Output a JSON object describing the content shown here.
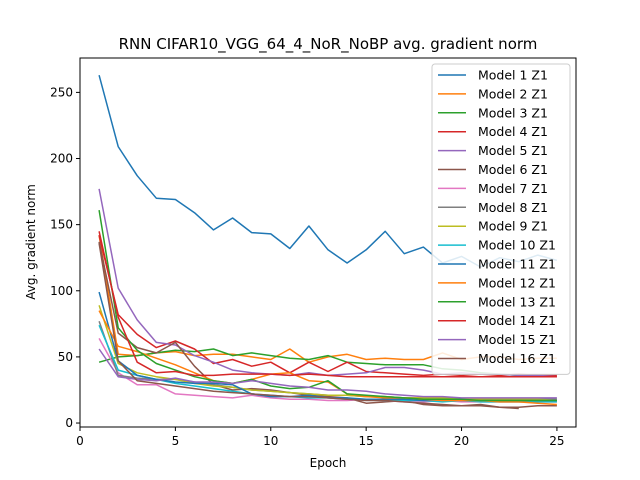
{
  "chart_data": {
    "type": "line",
    "title": "RNN CIFAR10_VGG_64_4_NoR_NoBP avg. gradient norm",
    "xlabel": "Epoch",
    "ylabel": "Avg. gradient norm",
    "xlim": [
      0,
      26
    ],
    "ylim": [
      -3,
      276
    ],
    "xticks": [
      0,
      5,
      10,
      15,
      20,
      25
    ],
    "yticks": [
      0,
      50,
      100,
      150,
      200,
      250
    ],
    "grid": false,
    "legend_position": "top-right",
    "series": [
      {
        "name": "Model 1 Z1",
        "color": "#1f77b4",
        "x": [
          1,
          2,
          3,
          4,
          5,
          6,
          7,
          8,
          9,
          10,
          11,
          12,
          13,
          14,
          15,
          16,
          17,
          18,
          19,
          20,
          21,
          22,
          23,
          24,
          25
        ],
        "y": [
          263,
          209,
          187,
          170,
          169,
          159,
          146,
          155,
          144,
          143,
          132,
          149,
          131,
          121,
          131,
          145,
          128,
          133,
          121,
          126,
          118,
          125,
          122,
          127,
          123
        ]
      },
      {
        "name": "Model 2 Z1",
        "color": "#ff7f0e",
        "x": [
          1,
          2,
          3,
          4,
          5,
          6,
          7,
          8,
          9,
          10,
          11,
          12,
          13,
          14,
          15,
          16,
          17,
          18,
          19,
          20,
          21,
          22,
          23,
          24,
          25
        ],
        "y": [
          142,
          52,
          51,
          53,
          54,
          51,
          52,
          52,
          50,
          48,
          56,
          46,
          50,
          52,
          48,
          49,
          48,
          48,
          53,
          48,
          50,
          50,
          48,
          49,
          49
        ]
      },
      {
        "name": "Model 3 Z1",
        "color": "#2ca02c",
        "x": [
          1,
          2,
          3,
          4,
          5,
          6,
          7,
          8,
          9,
          10,
          11,
          12,
          13,
          14,
          15,
          16,
          17,
          18,
          19,
          20,
          21,
          22,
          23,
          24,
          25
        ],
        "y": [
          46,
          50,
          51,
          53,
          55,
          54,
          56,
          51,
          53,
          51,
          49,
          48,
          51,
          46,
          45,
          44,
          44,
          44,
          41,
          40,
          38,
          37,
          36,
          35,
          35
        ]
      },
      {
        "name": "Model 4 Z1",
        "color": "#d62728",
        "x": [
          1,
          2,
          3,
          4,
          5,
          6,
          7,
          8,
          9,
          10,
          11,
          12,
          13,
          14,
          15,
          16,
          17,
          18,
          19,
          20,
          21,
          22,
          23,
          24,
          25
        ],
        "y": [
          142,
          82,
          67,
          57,
          62,
          56,
          45,
          48,
          43,
          46,
          38,
          46,
          39,
          46,
          39,
          38,
          37,
          36,
          37,
          36,
          37,
          36,
          37,
          36,
          36
        ]
      },
      {
        "name": "Model 5 Z1",
        "color": "#9467bd",
        "x": [
          1,
          2,
          3,
          4,
          5,
          6,
          7,
          8,
          9,
          10,
          11,
          12,
          13,
          14,
          15,
          16,
          17,
          18,
          19,
          20,
          21,
          22,
          23,
          24,
          25
        ],
        "y": [
          177,
          102,
          78,
          61,
          59,
          51,
          46,
          40,
          38,
          37,
          36,
          38,
          36,
          37,
          38,
          42,
          42,
          40,
          37,
          38,
          37,
          37,
          36,
          36,
          35
        ]
      },
      {
        "name": "Model 6 Z1",
        "color": "#8c564b",
        "x": [
          1,
          2,
          3,
          4,
          5,
          6,
          7,
          8,
          9,
          10,
          11,
          12,
          13,
          14,
          15,
          16,
          17,
          18,
          19,
          20,
          21,
          22,
          23,
          24,
          25
        ],
        "y": [
          137,
          68,
          57,
          53,
          61,
          43,
          29,
          25,
          26,
          25,
          23,
          21,
          20,
          19,
          15,
          16,
          17,
          14,
          13,
          13,
          14,
          12,
          12,
          13,
          13
        ]
      },
      {
        "name": "Model 7 Z1",
        "color": "#e377c2",
        "x": [
          1,
          2,
          3,
          4,
          5,
          6,
          7,
          8,
          9,
          10,
          11,
          12,
          13,
          14,
          15,
          16,
          17,
          18,
          19,
          20,
          21,
          22,
          23,
          24,
          25
        ],
        "y": [
          64,
          38,
          29,
          29,
          22,
          21,
          20,
          19,
          21,
          19,
          18,
          18,
          17,
          17,
          18,
          17,
          16,
          16,
          17,
          16,
          16,
          16,
          16,
          16,
          16
        ]
      },
      {
        "name": "Model 8 Z1",
        "color": "#7f7f7f",
        "x": [
          1,
          2,
          3,
          4,
          5,
          6,
          7,
          8,
          9,
          10,
          11,
          12,
          13,
          14,
          15,
          16,
          17,
          18,
          19,
          20,
          21,
          22,
          23,
          24,
          25
        ],
        "y": [
          77,
          36,
          34,
          33,
          33,
          31,
          29,
          27,
          25,
          24,
          23,
          22,
          21,
          21,
          20,
          20,
          19,
          19,
          19,
          18,
          18,
          18,
          18,
          18,
          18
        ]
      },
      {
        "name": "Model 9 Z1",
        "color": "#bcbd22",
        "x": [
          1,
          2,
          3,
          4,
          5,
          6,
          7,
          8,
          9,
          10,
          11,
          12,
          13,
          14,
          15,
          16,
          17,
          18,
          19,
          20,
          21,
          22,
          23,
          24,
          25
        ],
        "y": [
          89,
          45,
          38,
          35,
          33,
          30,
          28,
          27,
          25,
          24,
          23,
          22,
          21,
          21,
          20,
          20,
          19,
          19,
          19,
          18,
          18,
          18,
          18,
          18,
          17
        ]
      },
      {
        "name": "Model 10 Z1",
        "color": "#17becf",
        "x": [
          1,
          2,
          3,
          4,
          5,
          6,
          7,
          8,
          9,
          10,
          11,
          12,
          13,
          14,
          15,
          16,
          17,
          18,
          19,
          20,
          21,
          22,
          23,
          24,
          25
        ],
        "y": [
          74,
          40,
          36,
          33,
          30,
          28,
          26,
          24,
          22,
          21,
          20,
          19,
          19,
          18,
          18,
          17,
          17,
          17,
          16,
          17,
          16,
          16,
          16,
          16,
          16
        ]
      },
      {
        "name": "Model 11 Z1",
        "color": "#1f77b4",
        "x": [
          1,
          2,
          3,
          4,
          5,
          6,
          7,
          8,
          9,
          10,
          11,
          12,
          13,
          14,
          15,
          16,
          17,
          18,
          19,
          20,
          21,
          22,
          23,
          24,
          25
        ],
        "y": [
          99,
          47,
          36,
          33,
          31,
          30,
          30,
          29,
          22,
          20,
          20,
          21,
          19,
          19,
          18,
          18,
          18,
          17,
          18,
          17,
          17,
          17,
          17,
          17,
          17
        ]
      },
      {
        "name": "Model 12 Z1",
        "color": "#ff7f0e",
        "x": [
          1,
          2,
          3,
          4,
          5,
          6,
          7,
          8,
          9,
          10,
          11,
          12,
          13,
          14,
          15,
          16,
          17,
          18,
          19,
          20,
          21,
          22,
          23,
          24,
          25
        ],
        "y": [
          85,
          58,
          54,
          49,
          44,
          38,
          32,
          30,
          33,
          37,
          38,
          32,
          31,
          22,
          20,
          19,
          19,
          18,
          17,
          17,
          17,
          16,
          16,
          15,
          14
        ]
      },
      {
        "name": "Model 13 Z1",
        "color": "#2ca02c",
        "x": [
          1,
          2,
          3,
          4,
          5,
          6,
          7,
          8,
          9,
          10,
          11,
          12,
          13,
          14,
          15,
          16,
          17,
          18,
          19,
          20,
          21,
          22,
          23,
          24,
          25
        ],
        "y": [
          161,
          72,
          55,
          45,
          40,
          35,
          32,
          30,
          33,
          28,
          26,
          27,
          32,
          22,
          21,
          20,
          19,
          18,
          18,
          18,
          17,
          17,
          17,
          17,
          17
        ]
      },
      {
        "name": "Model 14 Z1",
        "color": "#d62728",
        "x": [
          1,
          2,
          3,
          4,
          5,
          6,
          7,
          8,
          9,
          10,
          11,
          12,
          13,
          14,
          15,
          16,
          17,
          18,
          19,
          20,
          21,
          22,
          23,
          24,
          25
        ],
        "y": [
          145,
          80,
          46,
          38,
          39,
          36,
          36,
          37,
          37,
          37,
          36,
          37,
          36,
          35,
          35,
          35,
          35,
          35,
          35,
          35,
          35,
          35,
          35,
          35,
          35
        ]
      },
      {
        "name": "Model 15 Z1",
        "color": "#9467bd",
        "x": [
          1,
          2,
          3,
          4,
          5,
          6,
          7,
          8,
          9,
          10,
          11,
          12,
          13,
          14,
          15,
          16,
          17,
          18,
          19,
          20,
          21,
          22,
          23,
          24,
          25
        ],
        "y": [
          56,
          35,
          33,
          32,
          34,
          31,
          31,
          30,
          32,
          30,
          28,
          27,
          25,
          25,
          24,
          22,
          21,
          20,
          20,
          19,
          19,
          19,
          19,
          19,
          19
        ]
      },
      {
        "name": "Model 16 Z1",
        "color": "#8c564b",
        "x": [
          1,
          2,
          3,
          4,
          5,
          6,
          7,
          8,
          9,
          10,
          11,
          12,
          13,
          14,
          15,
          16,
          17,
          18,
          19,
          20,
          21,
          22,
          23
        ],
        "y": [
          136,
          47,
          32,
          30,
          28,
          26,
          24,
          23,
          22,
          21,
          20,
          20,
          19,
          18,
          17,
          17,
          16,
          15,
          14,
          13,
          13,
          12,
          11
        ]
      }
    ]
  }
}
